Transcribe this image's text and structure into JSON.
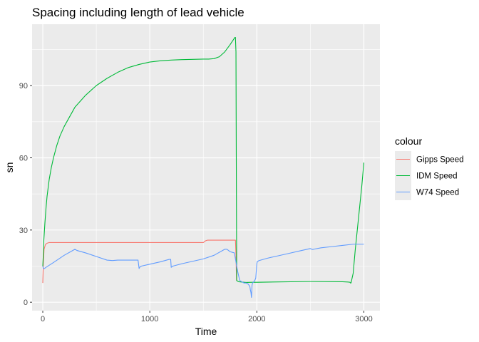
{
  "chart_data": {
    "type": "line",
    "title": "Spacing including length of lead vehicle",
    "xlabel": "Time",
    "ylabel": "sn",
    "xlim": [
      -100,
      3150
    ],
    "ylim": [
      -3.5,
      115.5
    ],
    "x_ticks": [
      0,
      1000,
      2000,
      3000
    ],
    "x_tick_labels": [
      "0",
      "1000",
      "2000",
      "3000"
    ],
    "y_ticks": [
      0,
      30,
      60,
      90
    ],
    "y_tick_labels": [
      "0",
      "30",
      "60",
      "90"
    ],
    "grid": true,
    "legend_position": "right",
    "legend": {
      "title": "colour",
      "items": [
        "Gipps Speed",
        "IDM Speed",
        "W74 Speed"
      ]
    },
    "series": [
      {
        "name": "Gipps Speed",
        "color": "#f8766d",
        "x": [
          0,
          5,
          12,
          25,
          40,
          60,
          100,
          200,
          500,
          1000,
          1500,
          1520,
          1540,
          1800,
          1805,
          1810
        ],
        "y": [
          8,
          16,
          22,
          24,
          24.5,
          24.8,
          24.8,
          24.8,
          24.8,
          24.8,
          24.8,
          25.5,
          25.8,
          25.8,
          20,
          9
        ]
      },
      {
        "name": "IDM Speed",
        "color": "#00ba38",
        "x": [
          0,
          5,
          10,
          20,
          30,
          40,
          60,
          80,
          100,
          130,
          160,
          200,
          250,
          300,
          400,
          500,
          600,
          700,
          800,
          900,
          1000,
          1100,
          1200,
          1300,
          1400,
          1500,
          1550,
          1600,
          1650,
          1700,
          1750,
          1780,
          1795,
          1800,
          1805,
          1808,
          1812,
          1830,
          1900,
          1950,
          2000,
          2500,
          2800,
          2850,
          2870,
          2875,
          2880,
          2885,
          2900,
          2920,
          2950,
          2980,
          3000
        ],
        "y": [
          15,
          20,
          26,
          33,
          39,
          44,
          51,
          56,
          60,
          65,
          69,
          73,
          77,
          81,
          86,
          90,
          93,
          95.5,
          97.5,
          98.8,
          99.8,
          100.3,
          100.6,
          100.8,
          100.9,
          101,
          101,
          101.2,
          102,
          104,
          107,
          109,
          110,
          110,
          104,
          60,
          9,
          8.5,
          8.2,
          8.3,
          8.3,
          8.6,
          8.5,
          8.4,
          8.3,
          8,
          8,
          9,
          12,
          22,
          35,
          48,
          58
        ]
      },
      {
        "name": "W74 Speed",
        "color": "#619cff",
        "x": [
          0,
          5,
          15,
          30,
          100,
          200,
          300,
          320,
          400,
          500,
          600,
          650,
          700,
          800,
          890,
          900,
          905,
          920,
          1000,
          1100,
          1180,
          1195,
          1200,
          1215,
          1300,
          1400,
          1500,
          1600,
          1700,
          1720,
          1750,
          1790,
          1800,
          1820,
          1840,
          1860,
          1880,
          1900,
          1920,
          1935,
          1940,
          1945,
          1950,
          1955,
          1960,
          1970,
          1980,
          1990,
          2000,
          2005,
          2010,
          2020,
          2100,
          2200,
          2300,
          2400,
          2500,
          2520,
          2540,
          2600,
          2700,
          2800,
          2900,
          3000
        ],
        "y": [
          15,
          14,
          14,
          14.5,
          16.5,
          19.5,
          22,
          21.5,
          20.5,
          19,
          17.5,
          17.3,
          17.5,
          17.5,
          17.5,
          14,
          14.5,
          15,
          15.8,
          16.8,
          17.8,
          17.8,
          14.5,
          15,
          16,
          17,
          18,
          19.5,
          22,
          22,
          21,
          20.5,
          18,
          13,
          9,
          8.5,
          8,
          8,
          7.5,
          6.5,
          5,
          4,
          2,
          7,
          8,
          8.5,
          9,
          10,
          16,
          17,
          17,
          17.3,
          18.3,
          19.3,
          20.3,
          21.3,
          22.3,
          21.9,
          22.1,
          22.6,
          23.1,
          23.6,
          24.1,
          24.1
        ]
      }
    ]
  }
}
